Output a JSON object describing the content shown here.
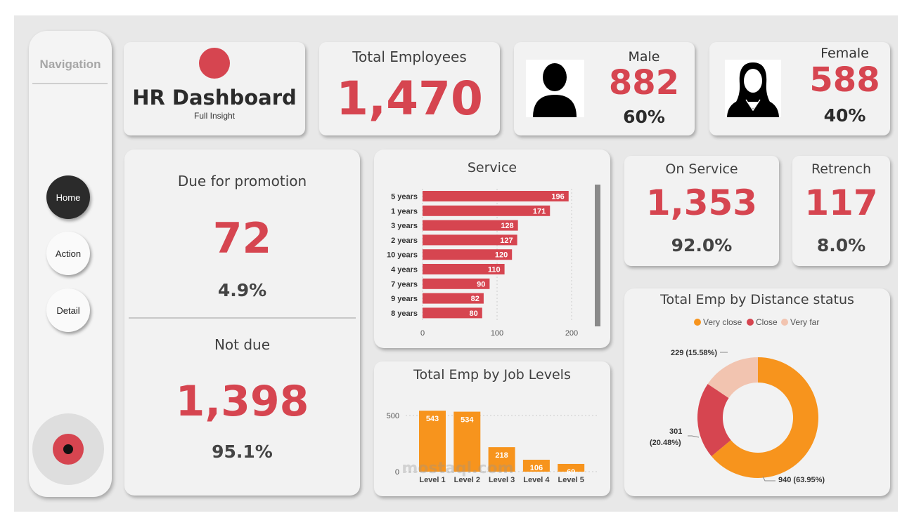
{
  "nav": {
    "title": "Navigation",
    "buttons": [
      "Home",
      "Action",
      "Detail"
    ]
  },
  "header": {
    "title": "HR Dashboard",
    "subtitle": "Full Insight"
  },
  "total": {
    "label": "Total Employees",
    "value": "1,470"
  },
  "male": {
    "label": "Male",
    "value": "882",
    "pct": "60%"
  },
  "female": {
    "label": "Female",
    "value": "588",
    "pct": "40%"
  },
  "promotion": {
    "due_label": "Due for promotion",
    "due_value": "72",
    "due_pct": "4.9%",
    "not_label": "Not due",
    "not_value": "1,398",
    "not_pct": "95.1%"
  },
  "on_service": {
    "label": "On Service",
    "value": "1,353",
    "pct": "92.0%"
  },
  "retrench": {
    "label": "Retrench",
    "value": "117",
    "pct": "8.0%"
  },
  "colors": {
    "accent": "#d64550",
    "orange": "#f7941d",
    "light": "#f2c4b0"
  },
  "watermark": "mostaql.com",
  "chart_data": [
    {
      "type": "bar",
      "orientation": "horizontal",
      "title": "Service",
      "categories": [
        "5 years",
        "1 years",
        "3 years",
        "2 years",
        "10 years",
        "4 years",
        "7 years",
        "9 years",
        "8 years"
      ],
      "values": [
        196,
        171,
        128,
        127,
        120,
        110,
        90,
        82,
        80
      ],
      "xticks": [
        "0",
        "100",
        "200"
      ],
      "xlim": [
        0,
        200
      ]
    },
    {
      "type": "bar",
      "title": "Total Emp by Job Levels",
      "categories": [
        "Level 1",
        "Level 2",
        "Level 3",
        "Level 4",
        "Level 5"
      ],
      "values": [
        543,
        534,
        218,
        106,
        69
      ],
      "yticks": [
        "0",
        "500"
      ],
      "ylim": [
        0,
        600
      ]
    },
    {
      "type": "pie",
      "title": "Total Emp by Distance status",
      "legend": [
        "Very close",
        "Close",
        "Very far"
      ],
      "values": [
        940,
        301,
        229
      ],
      "labels": [
        "940 (63.95%)",
        "301 (20.48%)",
        "229 (15.58%)"
      ],
      "legend_position": "top"
    }
  ]
}
